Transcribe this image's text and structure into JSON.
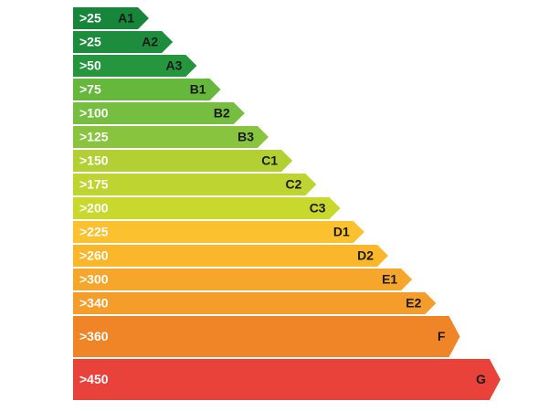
{
  "bands": [
    {
      "threshold": ">25",
      "grade": "A1",
      "color": "#17853a"
    },
    {
      "threshold": ">25",
      "grade": "A2",
      "color": "#1d8c3c"
    },
    {
      "threshold": ">50",
      "grade": "A3",
      "color": "#25963e"
    },
    {
      "threshold": ">75",
      "grade": "B1",
      "color": "#66b83c"
    },
    {
      "threshold": ">100",
      "grade": "B2",
      "color": "#76be3f"
    },
    {
      "threshold": ">125",
      "grade": "B3",
      "color": "#88c43e"
    },
    {
      "threshold": ">150",
      "grade": "C1",
      "color": "#b2d034"
    },
    {
      "threshold": ">175",
      "grade": "C2",
      "color": "#bed431"
    },
    {
      "threshold": ">200",
      "grade": "C3",
      "color": "#c8d82d"
    },
    {
      "threshold": ">225",
      "grade": "D1",
      "color": "#fbc12e"
    },
    {
      "threshold": ">260",
      "grade": "D2",
      "color": "#fab72b"
    },
    {
      "threshold": ">300",
      "grade": "E1",
      "color": "#f7a62c"
    },
    {
      "threshold": ">340",
      "grade": "E2",
      "color": "#f59d2b"
    },
    {
      "threshold": ">360",
      "grade": "F",
      "color": "#f08528"
    },
    {
      "threshold": ">450",
      "grade": "G",
      "color": "#e8423b"
    }
  ]
}
